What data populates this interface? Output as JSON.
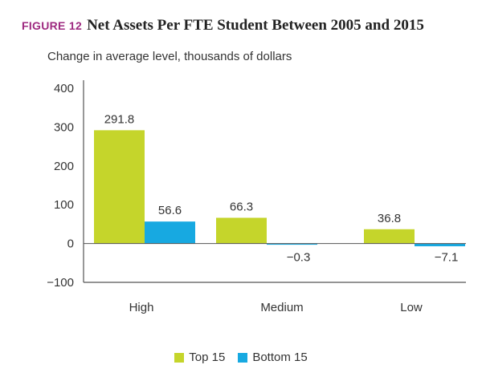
{
  "header": {
    "figure_label": "FIGURE 12",
    "title": "Net Assets Per FTE Student Between 2005 and 2015"
  },
  "colors": {
    "figure_label": "#9e2a80",
    "top": "#c5d52b",
    "bottom": "#17a9e1",
    "axis": "#555555"
  },
  "chart_data": {
    "type": "bar",
    "title": "Net Assets Per FTE Student Between 2005 and 2015",
    "subtitle": "Change in average level, thousands of dollars",
    "xlabel": "",
    "ylabel": "",
    "categories": [
      "High",
      "Medium",
      "Low"
    ],
    "series": [
      {
        "name": "Top 15",
        "values": [
          291.8,
          66.3,
          36.8
        ],
        "labels": [
          "291.8",
          "66.3",
          "36.8"
        ]
      },
      {
        "name": "Bottom 15",
        "values": [
          56.6,
          -0.3,
          -7.1
        ],
        "labels": [
          "56.6",
          "−0.3",
          "−7.1"
        ]
      }
    ],
    "ylim": [
      -100,
      400
    ],
    "yticks": [
      400,
      300,
      200,
      100,
      0,
      -100
    ],
    "ytick_labels": [
      "400",
      "300",
      "200",
      "100",
      "0",
      "−100"
    ],
    "legend": [
      "Top 15",
      "Bottom 15"
    ],
    "legend_position": "bottom-center",
    "grid": false
  }
}
